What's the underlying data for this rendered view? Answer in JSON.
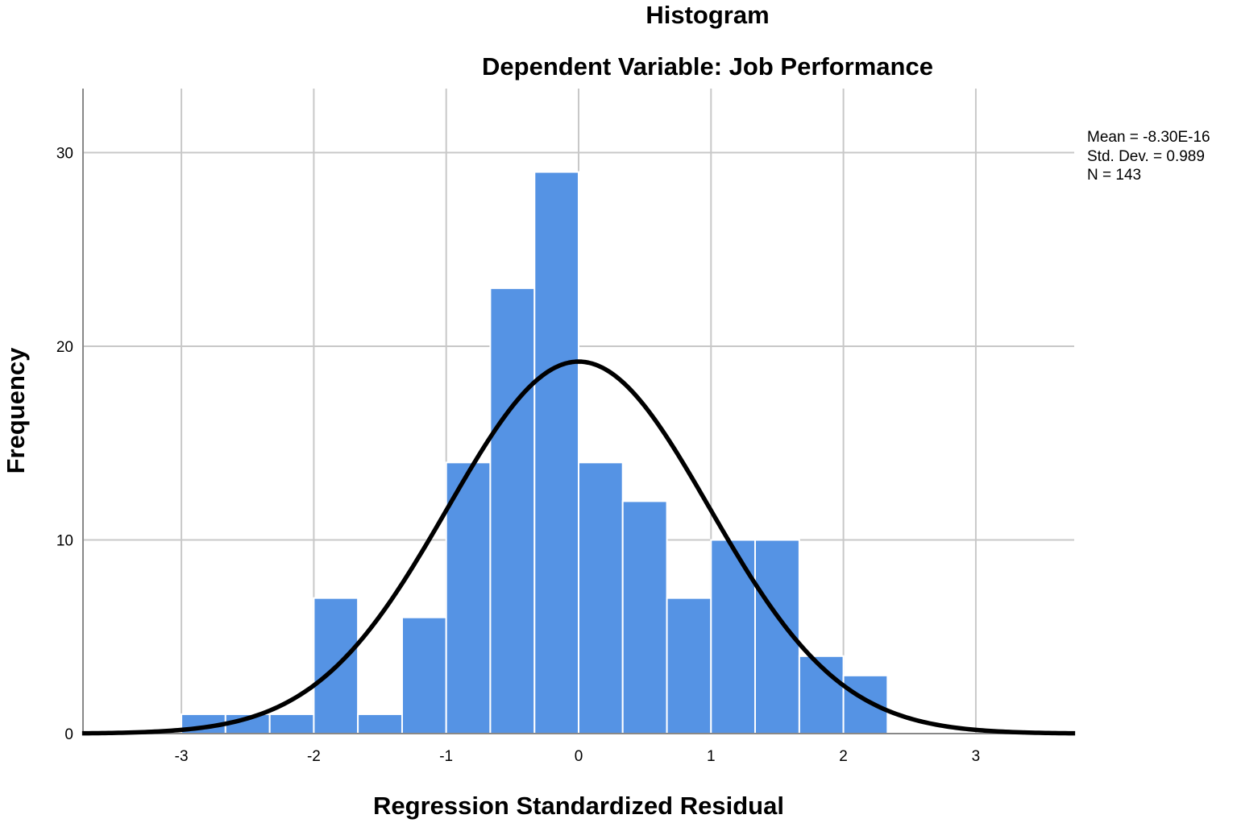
{
  "chart_data": {
    "type": "bar",
    "title": "Histogram",
    "subtitle": "Dependent Variable: Job Performance",
    "xlabel": "Regression Standardized Residual",
    "ylabel": "Frequency",
    "xlim": [
      -3.75,
      3.75
    ],
    "ylim": [
      0,
      33
    ],
    "x_ticks": [
      -3,
      -2,
      -1,
      0,
      1,
      2,
      3
    ],
    "y_ticks": [
      0,
      10,
      20,
      30
    ],
    "grid": true,
    "bin_width": 0.333,
    "bins": [
      {
        "x0": -3.0,
        "x1": -2.667,
        "count": 1
      },
      {
        "x0": -2.667,
        "x1": -2.333,
        "count": 1
      },
      {
        "x0": -2.333,
        "x1": -2.0,
        "count": 1
      },
      {
        "x0": -2.0,
        "x1": -1.667,
        "count": 7
      },
      {
        "x0": -1.667,
        "x1": -1.333,
        "count": 1
      },
      {
        "x0": -1.333,
        "x1": -1.0,
        "count": 6
      },
      {
        "x0": -1.0,
        "x1": -0.667,
        "count": 14
      },
      {
        "x0": -0.667,
        "x1": -0.333,
        "count": 23
      },
      {
        "x0": -0.333,
        "x1": 0.0,
        "count": 29
      },
      {
        "x0": 0.0,
        "x1": 0.333,
        "count": 14
      },
      {
        "x0": 0.333,
        "x1": 0.667,
        "count": 12
      },
      {
        "x0": 0.667,
        "x1": 1.0,
        "count": 7
      },
      {
        "x0": 1.0,
        "x1": 1.333,
        "count": 10
      },
      {
        "x0": 1.333,
        "x1": 1.667,
        "count": 10
      },
      {
        "x0": 1.667,
        "x1": 2.0,
        "count": 4
      },
      {
        "x0": 2.0,
        "x1": 2.333,
        "count": 3
      }
    ],
    "normal_curve": {
      "mean": 0,
      "std": 0.989,
      "n": 143
    },
    "stats_text": {
      "mean": "Mean = -8.30E-16",
      "std": "Std. Dev. = 0.989",
      "n": "N = 143"
    },
    "colors": {
      "bar": "#5593e4",
      "curve": "#000000",
      "grid": "#c8c8c8"
    }
  }
}
